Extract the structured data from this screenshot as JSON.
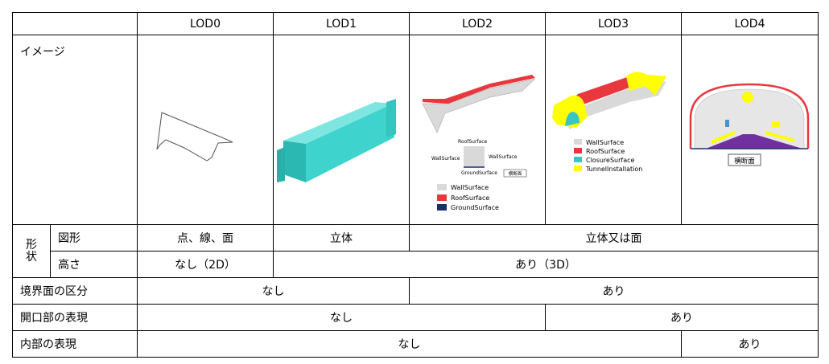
{
  "header": {
    "blank": "",
    "lod0": "LOD0",
    "lod1": "LOD1",
    "lod2": "LOD2",
    "lod3": "LOD3",
    "lod4": "LOD4"
  },
  "image_row": {
    "label": "イメージ"
  },
  "shape": {
    "group_label_1": "形",
    "group_label_2": "状",
    "figure_label": "図形",
    "figure_lod0": "点、線、面",
    "figure_lod1": "立体",
    "figure_lod2_4": "立体又は面",
    "height_label": "高さ",
    "height_lod0": "なし（2D）",
    "height_lod1_4": "あり（3D）"
  },
  "boundary": {
    "label": "境界面の区分",
    "lod0_1": "なし",
    "lod2_4": "あり"
  },
  "opening": {
    "label": "開口部の表現",
    "lod0_2": "なし",
    "lod3_4": "あり"
  },
  "interior": {
    "label": "内部の表現",
    "lod0_3": "なし",
    "lod4": "あり"
  },
  "lod2_figure": {
    "roof_label": "RoofSurface",
    "wall_left": "WallSurface",
    "wall_right": "WallSurface",
    "ground_label": "GroundSurface",
    "section_label": "横断面",
    "legend": [
      {
        "label": "WallSurface",
        "color": "#d9d9d9"
      },
      {
        "label": "RoofSurface",
        "color": "#e8383d"
      },
      {
        "label": "GroundSurface",
        "color": "#1f2d6b"
      }
    ]
  },
  "lod3_figure": {
    "legend": [
      {
        "label": "WallSurface",
        "color": "#d9d9d9"
      },
      {
        "label": "RoofSurface",
        "color": "#e8383d"
      },
      {
        "label": "ClosureSurface",
        "color": "#39c6c0"
      },
      {
        "label": "TunnelInstallation",
        "color": "#ffff00"
      }
    ]
  },
  "lod4_figure": {
    "section_label": "横断面"
  },
  "colors": {
    "teal": "#39cfc9",
    "red": "#e8383d",
    "gray": "#d9d9d9",
    "yellow": "#ffff00",
    "purple": "#7030a0",
    "navy": "#1f2d6b"
  }
}
